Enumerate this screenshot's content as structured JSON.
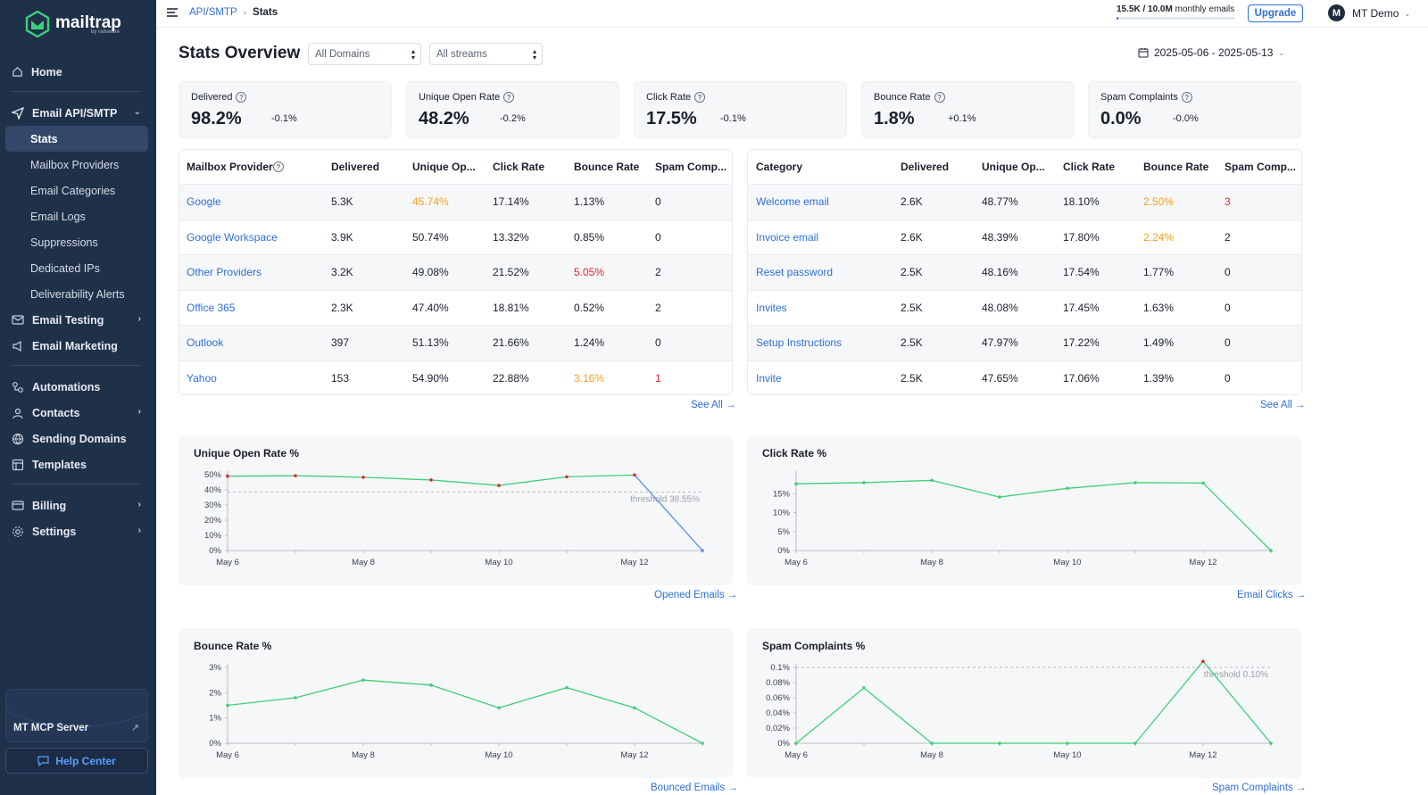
{
  "brand": {
    "name": "mailtrap",
    "sub": "by railsware"
  },
  "sidebar": {
    "home": "Home",
    "email_api": "Email API/SMTP",
    "sub_items": [
      "Stats",
      "Mailbox Providers",
      "Email Categories",
      "Email Logs",
      "Suppressions",
      "Dedicated IPs",
      "Deliverability Alerts"
    ],
    "email_testing": "Email Testing",
    "email_marketing": "Email Marketing",
    "automations": "Automations",
    "contacts": "Contacts",
    "sending_domains": "Sending Domains",
    "templates": "Templates",
    "billing": "Billing",
    "settings": "Settings",
    "mcp": "MT MCP Server",
    "help": "Help Center"
  },
  "topbar": {
    "crumb1": "API/SMTP",
    "crumb2": "Stats",
    "quota_used": "15.5K / 10.0M",
    "quota_suffix": "monthly emails",
    "quota_fraction": 0.00155,
    "upgrade": "Upgrade",
    "avatar": "M",
    "user": "MT Demo"
  },
  "header": {
    "title": "Stats Overview",
    "domain_select": "All Domains",
    "stream_select": "All streams",
    "date_range": "2025-05-06 - 2025-05-13"
  },
  "kpis": [
    {
      "label": "Delivered",
      "value": "98.2%",
      "delta": "-0.1%"
    },
    {
      "label": "Unique Open Rate",
      "value": "48.2%",
      "delta": "-0.2%"
    },
    {
      "label": "Click Rate",
      "value": "17.5%",
      "delta": "-0.1%"
    },
    {
      "label": "Bounce Rate",
      "value": "1.8%",
      "delta": "+0.1%"
    },
    {
      "label": "Spam Complaints",
      "value": "0.0%",
      "delta": "-0.0%"
    }
  ],
  "provider_table": {
    "headers": [
      "Mailbox Provider",
      "Delivered",
      "Unique Op...",
      "Click Rate",
      "Bounce Rate",
      "Spam Comp..."
    ],
    "rows": [
      [
        "Google",
        "5.3K",
        "45.74%",
        "17.14%",
        "1.13%",
        "0"
      ],
      [
        "Google Workspace",
        "3.9K",
        "50.74%",
        "13.32%",
        "0.85%",
        "0"
      ],
      [
        "Other Providers",
        "3.2K",
        "49.08%",
        "21.52%",
        "5.05%",
        "2"
      ],
      [
        "Office 365",
        "2.3K",
        "47.40%",
        "18.81%",
        "0.52%",
        "2"
      ],
      [
        "Outlook",
        "397",
        "51.13%",
        "21.66%",
        "1.24%",
        "0"
      ],
      [
        "Yahoo",
        "153",
        "54.90%",
        "22.88%",
        "3.16%",
        "1"
      ]
    ],
    "see_all": "See All →"
  },
  "category_table": {
    "headers": [
      "Category",
      "Delivered",
      "Unique Op...",
      "Click Rate",
      "Bounce Rate",
      "Spam Comp..."
    ],
    "rows": [
      [
        "Welcome email",
        "2.6K",
        "48.77%",
        "18.10%",
        "2.50%",
        "3"
      ],
      [
        "Invoice email",
        "2.6K",
        "48.39%",
        "17.80%",
        "2.24%",
        "2"
      ],
      [
        "Reset password",
        "2.5K",
        "48.16%",
        "17.54%",
        "1.77%",
        "0"
      ],
      [
        "Invites",
        "2.5K",
        "48.08%",
        "17.45%",
        "1.63%",
        "0"
      ],
      [
        "Setup Instructions",
        "2.5K",
        "47.97%",
        "17.22%",
        "1.49%",
        "0"
      ],
      [
        "Invite",
        "2.5K",
        "47.65%",
        "17.06%",
        "1.39%",
        "0"
      ]
    ],
    "see_all": "See All →"
  },
  "colors": {
    "line": "#3ecf7a",
    "line_drop": "#5b8ee6",
    "warn": "#f3a21d",
    "danger": "#e02a2a",
    "link": "#2f6fd6"
  },
  "chart_data": [
    {
      "type": "line",
      "title": "Unique Open Rate %",
      "x": [
        "May 6",
        "May 7",
        "May 8",
        "May 9",
        "May 10",
        "May 11",
        "May 12",
        "May 13"
      ],
      "x_ticks": [
        "May 6",
        "May 8",
        "May 10",
        "May 12"
      ],
      "values": [
        49.0,
        49.3,
        48.3,
        46.5,
        42.9,
        48.6,
        49.8,
        0
      ],
      "y_ticks": [
        "50%",
        "40%",
        "30%",
        "20%",
        "10%",
        "0%"
      ],
      "ylim": [
        0,
        50
      ],
      "threshold": 38.55,
      "threshold_label": "threshold 38.55%",
      "link": "Opened Emails →"
    },
    {
      "type": "line",
      "title": "Click Rate %",
      "x": [
        "May 6",
        "May 7",
        "May 8",
        "May 9",
        "May 10",
        "May 11",
        "May 12",
        "May 13"
      ],
      "x_ticks": [
        "May 6",
        "May 8",
        "May 10",
        "May 12"
      ],
      "values": [
        17.6,
        17.9,
        18.5,
        14.1,
        16.4,
        17.9,
        17.8,
        0
      ],
      "y_ticks": [
        "15%",
        "10%",
        "5%",
        "0%"
      ],
      "ylim": [
        0,
        20
      ],
      "link": "Email Clicks →"
    },
    {
      "type": "line",
      "title": "Bounce Rate %",
      "x": [
        "May 6",
        "May 7",
        "May 8",
        "May 9",
        "May 10",
        "May 11",
        "May 12",
        "May 13"
      ],
      "x_ticks": [
        "May 6",
        "May 8",
        "May 10",
        "May 12"
      ],
      "values": [
        1.5,
        1.8,
        2.5,
        2.3,
        1.4,
        2.2,
        1.4,
        0
      ],
      "y_ticks": [
        "3%",
        "2%",
        "1%",
        "0%"
      ],
      "ylim": [
        0,
        3
      ],
      "link": "Bounced Emails →"
    },
    {
      "type": "line",
      "title": "Spam Complaints %",
      "x": [
        "May 6",
        "May 7",
        "May 8",
        "May 9",
        "May 10",
        "May 11",
        "May 12",
        "May 13"
      ],
      "x_ticks": [
        "May 6",
        "May 8",
        "May 10",
        "May 12"
      ],
      "values": [
        0,
        0.073,
        0,
        0,
        0,
        0,
        0.108,
        0
      ],
      "y_ticks": [
        "0.1%",
        "0.08%",
        "0.06%",
        "0.04%",
        "0.02%",
        "0%"
      ],
      "ylim": [
        0,
        0.1
      ],
      "threshold": 0.1,
      "threshold_label": "threshold 0.10%",
      "link": "Spam Complaints →"
    }
  ]
}
